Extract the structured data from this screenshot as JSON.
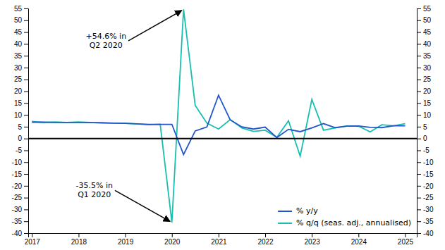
{
  "chart_data": {
    "type": "line",
    "x": [
      2017.0,
      2017.25,
      2017.5,
      2017.75,
      2018.0,
      2018.25,
      2018.5,
      2018.75,
      2019.0,
      2019.25,
      2019.5,
      2019.75,
      2020.0,
      2020.25,
      2020.5,
      2020.75,
      2021.0,
      2021.25,
      2021.5,
      2021.75,
      2022.0,
      2022.25,
      2022.5,
      2022.75,
      2023.0,
      2023.25,
      2023.5,
      2023.75,
      2024.0,
      2024.25,
      2024.5,
      2024.75,
      2025.0
    ],
    "series": [
      {
        "name": "% y/y",
        "color": "#2255cc",
        "values": [
          6.9,
          6.9,
          6.8,
          6.8,
          6.8,
          6.7,
          6.7,
          6.5,
          6.4,
          6.2,
          6.0,
          6.0,
          6.0,
          -6.8,
          3.2,
          4.9,
          18.3,
          7.9,
          4.9,
          4.0,
          4.8,
          0.4,
          3.9,
          2.9,
          4.5,
          6.3,
          4.6,
          5.2,
          5.3,
          4.7,
          4.6,
          5.4,
          5.4
        ]
      },
      {
        "name": "% q/q (seas. adj., annualised)",
        "color": "#18bfb0",
        "values": [
          7.2,
          6.8,
          7.0,
          6.8,
          7.0,
          6.8,
          6.5,
          6.5,
          6.4,
          6.2,
          5.8,
          6.0,
          -35.5,
          54.6,
          14.0,
          6.5,
          4.0,
          8.0,
          4.5,
          3.0,
          3.5,
          0.5,
          7.5,
          -7.5,
          16.5,
          3.5,
          4.5,
          5.3,
          5.2,
          2.8,
          5.8,
          5.4,
          6.3
        ]
      }
    ],
    "xlim": [
      2016.92,
      2025.25
    ],
    "xticks": [
      2017,
      2018,
      2019,
      2020,
      2021,
      2022,
      2023,
      2024,
      2025
    ],
    "ylim": [
      -40,
      55
    ],
    "yticks": [
      -40,
      -35,
      -30,
      -25,
      -20,
      -15,
      -10,
      -5,
      0,
      5,
      10,
      15,
      20,
      25,
      30,
      35,
      40,
      45,
      50,
      55
    ],
    "annotations": [
      "+54.6% in\nQ2 2020",
      "-35.5% in\nQ1 2020"
    ],
    "legend": "lower right",
    "grid": false
  }
}
